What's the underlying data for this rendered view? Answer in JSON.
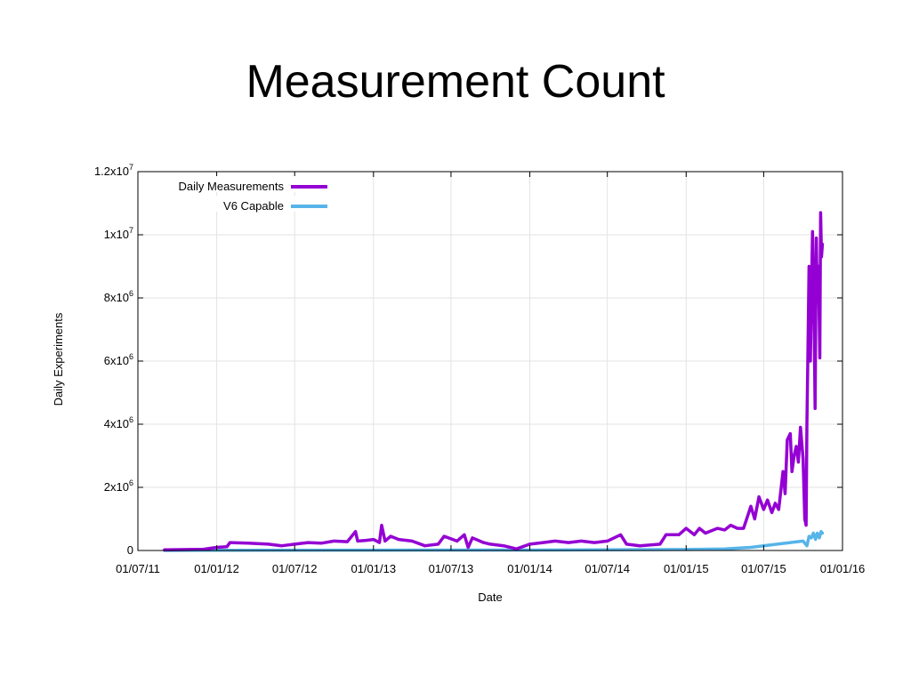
{
  "title": "Measurement Count",
  "chart_data": {
    "type": "line",
    "xlabel": "Date",
    "ylabel": "Daily Experiments",
    "x_ticks": [
      "01/07/11",
      "01/01/12",
      "01/07/12",
      "01/01/13",
      "01/07/13",
      "01/01/14",
      "01/07/14",
      "01/01/15",
      "01/07/15",
      "01/01/16"
    ],
    "y_ticks": [
      {
        "value": 0,
        "base": "0",
        "exp": ""
      },
      {
        "value": 2000000,
        "base": "2x10",
        "exp": "6"
      },
      {
        "value": 4000000,
        "base": "4x10",
        "exp": "6"
      },
      {
        "value": 6000000,
        "base": "6x10",
        "exp": "6"
      },
      {
        "value": 8000000,
        "base": "8x10",
        "exp": "6"
      },
      {
        "value": 10000000,
        "base": "1x10",
        "exp": "7"
      },
      {
        "value": 12000000,
        "base": "1.2x10",
        "exp": "7"
      }
    ],
    "ylim": [
      0,
      12000000
    ],
    "xlim": [
      "2011-07-01",
      "2016-01-01"
    ],
    "grid": true,
    "legend": "top-left",
    "series": [
      {
        "name": "Daily Measurements",
        "color": "#9400d3",
        "points": [
          [
            "2011-09-01",
            20000
          ],
          [
            "2011-12-01",
            40000
          ],
          [
            "2012-01-01",
            100000
          ],
          [
            "2012-01-25",
            120000
          ],
          [
            "2012-02-01",
            250000
          ],
          [
            "2012-03-15",
            230000
          ],
          [
            "2012-05-01",
            200000
          ],
          [
            "2012-06-01",
            150000
          ],
          [
            "2012-07-01",
            200000
          ],
          [
            "2012-08-01",
            250000
          ],
          [
            "2012-09-01",
            230000
          ],
          [
            "2012-10-01",
            300000
          ],
          [
            "2012-11-01",
            280000
          ],
          [
            "2012-11-20",
            600000
          ],
          [
            "2012-11-25",
            300000
          ],
          [
            "2012-12-15",
            320000
          ],
          [
            "2013-01-01",
            350000
          ],
          [
            "2013-01-15",
            250000
          ],
          [
            "2013-01-20",
            800000
          ],
          [
            "2013-01-28",
            300000
          ],
          [
            "2013-02-10",
            450000
          ],
          [
            "2013-03-01",
            350000
          ],
          [
            "2013-04-01",
            300000
          ],
          [
            "2013-05-01",
            150000
          ],
          [
            "2013-06-01",
            200000
          ],
          [
            "2013-06-15",
            450000
          ],
          [
            "2013-07-15",
            300000
          ],
          [
            "2013-08-01",
            500000
          ],
          [
            "2013-08-10",
            100000
          ],
          [
            "2013-08-20",
            400000
          ],
          [
            "2013-09-15",
            250000
          ],
          [
            "2013-10-01",
            200000
          ],
          [
            "2013-11-01",
            150000
          ],
          [
            "2013-12-01",
            50000
          ],
          [
            "2014-01-01",
            200000
          ],
          [
            "2014-02-01",
            250000
          ],
          [
            "2014-03-01",
            300000
          ],
          [
            "2014-04-01",
            250000
          ],
          [
            "2014-05-01",
            300000
          ],
          [
            "2014-06-01",
            250000
          ],
          [
            "2014-07-01",
            300000
          ],
          [
            "2014-08-01",
            500000
          ],
          [
            "2014-08-15",
            200000
          ],
          [
            "2014-09-15",
            150000
          ],
          [
            "2014-11-01",
            200000
          ],
          [
            "2014-11-15",
            500000
          ],
          [
            "2014-12-15",
            500000
          ],
          [
            "2015-01-01",
            700000
          ],
          [
            "2015-01-20",
            500000
          ],
          [
            "2015-02-01",
            700000
          ],
          [
            "2015-02-15",
            550000
          ],
          [
            "2015-03-15",
            700000
          ],
          [
            "2015-04-01",
            650000
          ],
          [
            "2015-04-15",
            800000
          ],
          [
            "2015-05-01",
            700000
          ],
          [
            "2015-05-15",
            700000
          ],
          [
            "2015-06-01",
            1400000
          ],
          [
            "2015-06-10",
            1000000
          ],
          [
            "2015-06-20",
            1700000
          ],
          [
            "2015-07-01",
            1300000
          ],
          [
            "2015-07-10",
            1600000
          ],
          [
            "2015-07-20",
            1200000
          ],
          [
            "2015-07-28",
            1500000
          ],
          [
            "2015-08-05",
            1300000
          ],
          [
            "2015-08-15",
            2500000
          ],
          [
            "2015-08-20",
            1800000
          ],
          [
            "2015-08-25",
            3500000
          ],
          [
            "2015-09-01",
            3700000
          ],
          [
            "2015-09-05",
            2500000
          ],
          [
            "2015-09-10",
            3000000
          ],
          [
            "2015-09-15",
            3300000
          ],
          [
            "2015-09-20",
            2800000
          ],
          [
            "2015-09-25",
            3900000
          ],
          [
            "2015-10-01",
            2900000
          ],
          [
            "2015-10-05",
            1000000
          ],
          [
            "2015-10-08",
            800000
          ],
          [
            "2015-10-10",
            4000000
          ],
          [
            "2015-10-12",
            6000000
          ],
          [
            "2015-10-15",
            9000000
          ],
          [
            "2015-10-18",
            6000000
          ],
          [
            "2015-10-21",
            8500000
          ],
          [
            "2015-10-23",
            10100000
          ],
          [
            "2015-10-26",
            8200000
          ],
          [
            "2015-10-29",
            4500000
          ],
          [
            "2015-11-01",
            9900000
          ],
          [
            "2015-11-03",
            8000000
          ],
          [
            "2015-11-06",
            9000000
          ],
          [
            "2015-11-09",
            6100000
          ],
          [
            "2015-11-11",
            10700000
          ],
          [
            "2015-11-13",
            9300000
          ],
          [
            "2015-11-15",
            9700000
          ]
        ]
      },
      {
        "name": "V6 Capable",
        "color": "#56b4e9",
        "points": [
          [
            "2011-09-01",
            0
          ],
          [
            "2012-01-01",
            5000
          ],
          [
            "2013-01-01",
            10000
          ],
          [
            "2014-01-01",
            15000
          ],
          [
            "2015-01-01",
            30000
          ],
          [
            "2015-04-01",
            50000
          ],
          [
            "2015-06-01",
            100000
          ],
          [
            "2015-08-01",
            200000
          ],
          [
            "2015-09-01",
            250000
          ],
          [
            "2015-10-01",
            300000
          ],
          [
            "2015-10-10",
            150000
          ],
          [
            "2015-10-15",
            450000
          ],
          [
            "2015-10-20",
            400000
          ],
          [
            "2015-10-25",
            550000
          ],
          [
            "2015-10-30",
            350000
          ],
          [
            "2015-11-03",
            550000
          ],
          [
            "2015-11-08",
            400000
          ],
          [
            "2015-11-12",
            600000
          ],
          [
            "2015-11-15",
            550000
          ]
        ]
      }
    ]
  }
}
